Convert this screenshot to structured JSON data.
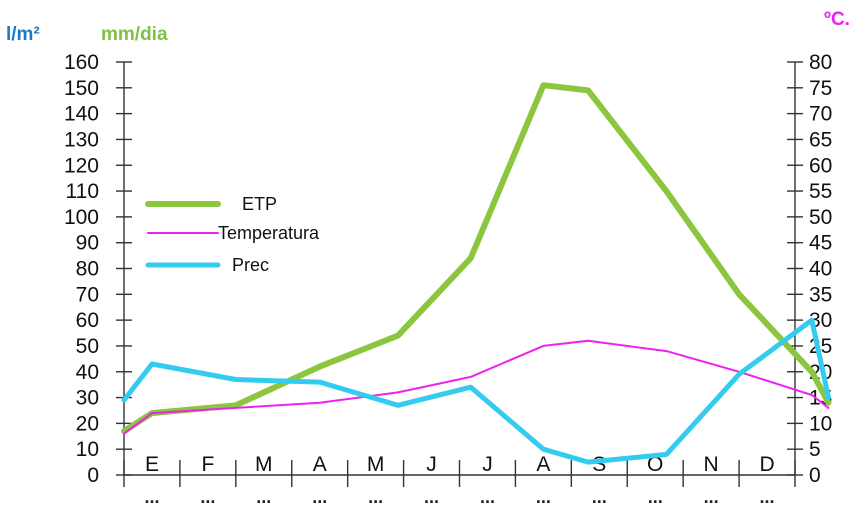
{
  "chart_data": {
    "type": "line",
    "categories": [
      "E",
      "F",
      "M",
      "A",
      "M",
      "J",
      "J",
      "A",
      "S",
      "O",
      "N",
      "D"
    ],
    "below_labels": [
      "...",
      "...",
      "...",
      "...",
      "...",
      "...",
      "...",
      "...",
      "...",
      "...",
      "...",
      "..."
    ],
    "left_unit_1": "l/m²",
    "left_unit_2": "mm/dia",
    "right_unit": "ºC.",
    "left_axis": {
      "ylim": [
        0,
        160
      ],
      "ticks": [
        0,
        10,
        20,
        30,
        40,
        50,
        60,
        70,
        80,
        90,
        100,
        110,
        120,
        130,
        140,
        150,
        160
      ]
    },
    "right_axis": {
      "ylim": [
        0,
        80
      ],
      "ticks": [
        0,
        5,
        10,
        15,
        20,
        25,
        30,
        35,
        40,
        45,
        50,
        55,
        60,
        65,
        70,
        75,
        80
      ]
    },
    "series": [
      {
        "name": "ETP",
        "axis": "left",
        "color": "#8cc63f",
        "x": [
          0,
          0.5,
          2,
          3.5,
          4.9,
          6.2,
          7.5,
          8.3,
          9.7,
          11,
          12.3,
          12.6
        ],
        "values": [
          17,
          24,
          27,
          42,
          54,
          84,
          151,
          149,
          110,
          70,
          40,
          28
        ]
      },
      {
        "name": "Temperatura",
        "axis": "right",
        "color": "#ee22ee",
        "x": [
          0,
          0.5,
          2,
          3.5,
          4.9,
          6.2,
          7.5,
          8.3,
          9.7,
          11,
          12.3,
          12.6
        ],
        "values": [
          8,
          12,
          13,
          14,
          16,
          19,
          25,
          26,
          24,
          20,
          15.5,
          13
        ]
      },
      {
        "name": "Prec",
        "axis": "left",
        "color": "#33ccee",
        "x": [
          0,
          0.5,
          2,
          3.5,
          4.9,
          6.2,
          7.5,
          8.3,
          9.7,
          11,
          12.3,
          12.6
        ],
        "values": [
          29,
          43,
          37,
          36,
          27,
          34,
          10,
          5,
          8,
          39,
          60,
          30
        ]
      }
    ],
    "legend": {
      "position": "top-left"
    },
    "grid": false
  }
}
